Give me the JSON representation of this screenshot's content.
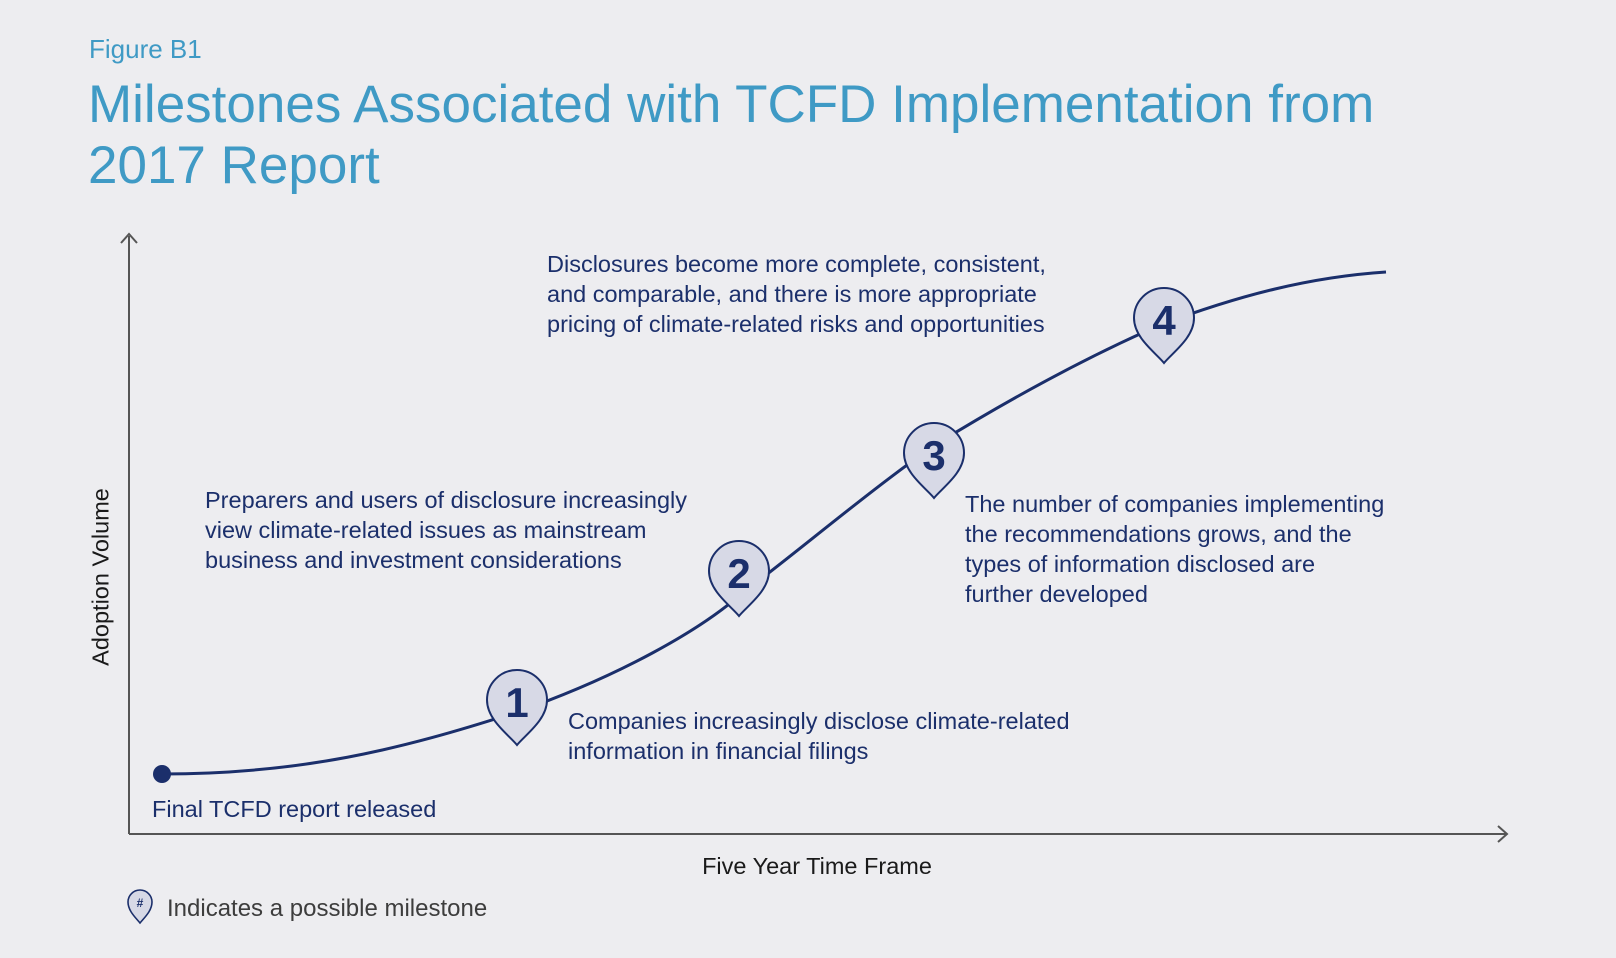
{
  "figure": {
    "label": "Figure B1",
    "title_lines": [
      "Milestones Associated with TCFD Implementation from",
      "2017 Report"
    ]
  },
  "axes": {
    "x_label": "Five Year Time Frame",
    "y_label": "Adoption Volume"
  },
  "start_point": {
    "label": "Final TCFD report released"
  },
  "milestones": [
    {
      "number": "1",
      "text_lines": [
        "Companies increasingly disclose climate-related",
        "information in financial filings"
      ]
    },
    {
      "number": "2",
      "text_lines": [
        "Preparers and users of disclosure increasingly",
        "view climate-related issues as mainstream",
        "business and investment considerations"
      ]
    },
    {
      "number": "3",
      "text_lines": [
        "The number of companies implementing",
        "the recommendations grows, and the",
        "types of information disclosed are",
        "further developed"
      ]
    },
    {
      "number": "4",
      "text_lines": [
        "Disclosures become more complete, consistent,",
        "and comparable, and there is more appropriate",
        "pricing of climate-related risks and opportunities"
      ]
    }
  ],
  "legend": {
    "icon_symbol": "#",
    "icon": "map-pin-icon",
    "text": "Indicates a possible milestone"
  },
  "colors": {
    "title": "#3f9ac5",
    "navy": "#1b2f6b",
    "pin_fill": "#d7d9e6",
    "background": "#ededf0"
  }
}
